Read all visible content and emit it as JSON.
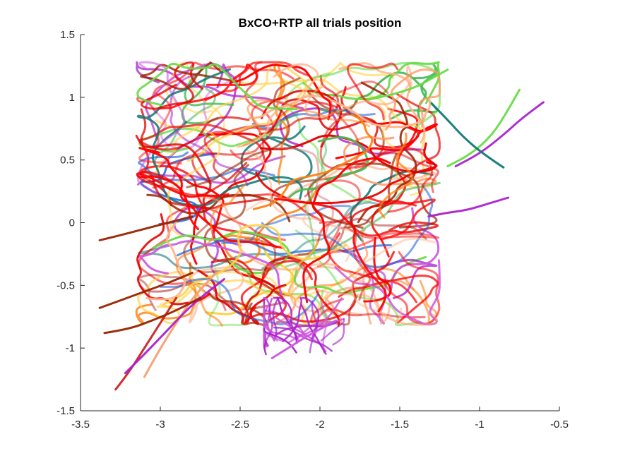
{
  "chart_data": {
    "type": "line",
    "title": "BxCO+RTP all trials position",
    "xlabel": "",
    "ylabel": "",
    "xlim": [
      -3.5,
      -0.5
    ],
    "ylim": [
      -1.5,
      1.5
    ],
    "xticks": [
      -3.5,
      -3,
      -2.5,
      -2,
      -1.5,
      -1,
      -0.5
    ],
    "xtick_labels": [
      "-3.5",
      "-3",
      "-2.5",
      "-2",
      "-1.5",
      "-1",
      "-0.5"
    ],
    "yticks": [
      -1.5,
      -1,
      -0.5,
      0,
      0.5,
      1,
      1.5
    ],
    "ytick_labels": [
      "-1.5",
      "-1",
      "-0.5",
      "0",
      "0.5",
      "1",
      "1.5"
    ],
    "grid": false,
    "legend": "none",
    "palette": [
      "#ff0000",
      "#e60000",
      "#ff7f0e",
      "#ff9966",
      "#ffb38a",
      "#66dd44",
      "#44bb55",
      "#aa22cc",
      "#cc55dd",
      "#2266dd",
      "#117777",
      "#992200",
      "#cc7777",
      "#ffd040"
    ],
    "dense_region": {
      "x": [
        -3.05,
        -1.3
      ],
      "y": [
        -0.7,
        1.2
      ]
    },
    "purple_cluster": {
      "x": [
        -2.35,
        -1.85
      ],
      "y": [
        -1.05,
        -0.6
      ]
    },
    "trials": 150,
    "series": [
      {
        "name": "",
        "color": "#cc2222",
        "values": [
          [
            -3.28,
            -1.33
          ],
          [
            -3.2,
            -1.2
          ],
          [
            -3.1,
            -1.0
          ],
          [
            -3.0,
            -0.8
          ],
          [
            -2.9,
            -0.6
          ]
        ]
      },
      {
        "name": "",
        "color": "#f4a070",
        "values": [
          [
            -3.1,
            -1.23
          ],
          [
            -3.0,
            -1.0
          ],
          [
            -2.9,
            -0.8
          ],
          [
            -2.8,
            -0.6
          ],
          [
            -2.65,
            -0.4
          ]
        ]
      },
      {
        "name": "",
        "color": "#aa22cc",
        "values": [
          [
            -3.22,
            -1.2
          ],
          [
            -3.1,
            -1.05
          ],
          [
            -2.95,
            -0.85
          ],
          [
            -2.8,
            -0.65
          ],
          [
            -2.6,
            -0.45
          ]
        ]
      },
      {
        "name": "",
        "color": "#992200",
        "values": [
          [
            -3.35,
            -0.88
          ],
          [
            -3.2,
            -0.85
          ],
          [
            -3.05,
            -0.78
          ],
          [
            -2.9,
            -0.7
          ],
          [
            -2.75,
            -0.6
          ]
        ]
      },
      {
        "name": "",
        "color": "#992200",
        "values": [
          [
            -3.38,
            -0.68
          ],
          [
            -3.25,
            -0.62
          ],
          [
            -3.1,
            -0.55
          ],
          [
            -2.95,
            -0.48
          ],
          [
            -2.8,
            -0.4
          ]
        ]
      },
      {
        "name": "",
        "color": "#992200",
        "values": [
          [
            -3.38,
            -0.14
          ],
          [
            -3.25,
            -0.1
          ],
          [
            -3.1,
            -0.05
          ],
          [
            -2.95,
            0.0
          ],
          [
            -2.8,
            0.05
          ]
        ]
      },
      {
        "name": "",
        "color": "#66dd44",
        "values": [
          [
            -0.75,
            1.06
          ],
          [
            -0.82,
            0.9
          ],
          [
            -0.92,
            0.7
          ],
          [
            -1.05,
            0.55
          ],
          [
            -1.2,
            0.45
          ]
        ]
      },
      {
        "name": "",
        "color": "#aa22cc",
        "values": [
          [
            -0.6,
            0.96
          ],
          [
            -0.72,
            0.85
          ],
          [
            -0.85,
            0.7
          ],
          [
            -1.0,
            0.55
          ],
          [
            -1.15,
            0.45
          ]
        ]
      },
      {
        "name": "",
        "color": "#117777",
        "values": [
          [
            -0.85,
            0.44
          ],
          [
            -0.98,
            0.55
          ],
          [
            -1.1,
            0.68
          ],
          [
            -1.2,
            0.82
          ],
          [
            -1.3,
            0.95
          ]
        ]
      },
      {
        "name": "",
        "color": "#aa22cc",
        "values": [
          [
            -0.82,
            0.2
          ],
          [
            -0.95,
            0.15
          ],
          [
            -1.08,
            0.1
          ],
          [
            -1.2,
            0.08
          ],
          [
            -1.32,
            0.05
          ]
        ]
      },
      {
        "name": "",
        "color": "#66dd44",
        "values": [
          [
            -1.2,
            1.22
          ],
          [
            -1.3,
            1.15
          ],
          [
            -1.4,
            1.08
          ],
          [
            -1.55,
            1.02
          ],
          [
            -1.7,
            0.98
          ]
        ]
      },
      {
        "name": "",
        "color": "#cc55dd",
        "values": [
          [
            -2.3,
            -1.08
          ],
          [
            -2.2,
            -1.0
          ],
          [
            -2.1,
            -0.92
          ],
          [
            -2.0,
            -0.85
          ],
          [
            -1.9,
            -0.78
          ]
        ]
      }
    ]
  }
}
